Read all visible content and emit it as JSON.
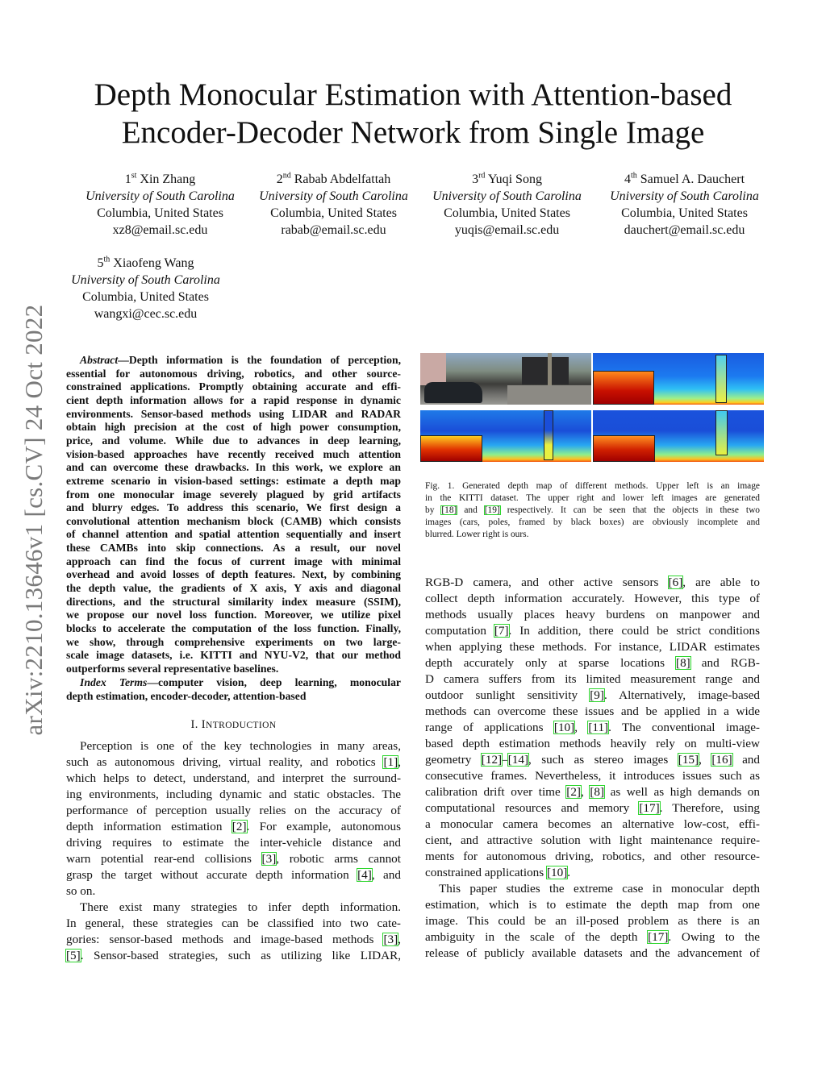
{
  "sidebar_id": "arXiv:2210.13646v1  [cs.CV]  24 Oct 2022",
  "title": [
    "Depth Monocular Estimation with Attention-based",
    "Encoder-Decoder Network from Single Image"
  ],
  "authors": [
    {
      "ord": "1",
      "sup": "st",
      "name": "Xin Zhang",
      "aff": "University of South Carolina",
      "loc": "Columbia, United States",
      "email": "xz8@email.sc.edu"
    },
    {
      "ord": "2",
      "sup": "nd",
      "name": "Rabab Abdelfattah",
      "aff": "University of South Carolina",
      "loc": "Columbia, United States",
      "email": "rabab@email.sc.edu"
    },
    {
      "ord": "3",
      "sup": "rd",
      "name": "Yuqi Song",
      "aff": "University of South Carolina",
      "loc": "Columbia, United States",
      "email": "yuqis@email.sc.edu"
    },
    {
      "ord": "4",
      "sup": "th",
      "name": "Samuel A. Dauchert",
      "aff": "University of South Carolina",
      "loc": "Columbia, United States",
      "email": "dauchert@email.sc.edu"
    },
    {
      "ord": "5",
      "sup": "th",
      "name": "Xiaofeng Wang",
      "aff": "University of South Carolina",
      "loc": "Columbia, United States",
      "email": "wangxi@cec.sc.edu"
    }
  ],
  "abstract": {
    "label": "Abstract",
    "lines": [
      "—Depth information is the foundation of perception,",
      "essential for autonomous driving, robotics, and other source-",
      "constrained applications. Promptly obtaining accurate and effi-",
      "cient depth information allows for a rapid response in dynamic",
      "environments. Sensor-based methods using LIDAR and RADAR",
      "obtain high precision at the cost of high power consumption,",
      "price, and volume. While due to advances in deep learning,",
      "vision-based approaches have recently received much attention",
      "and can overcome these drawbacks. In this work, we explore an",
      "extreme scenario in vision-based settings: estimate a depth map",
      "from one monocular image severely plagued by grid artifacts",
      "and blurry edges. To address this scenario, We first design a",
      "convolutional attention mechanism block (CAMB) which consists",
      "of channel attention and spatial attention sequentially and insert",
      "these CAMBs into skip connections. As a result, our novel",
      "approach can find the focus of current image with minimal",
      "overhead and avoid losses of depth features. Next, by combining",
      "the depth value, the gradients of X axis, Y axis and diagonal",
      "directions, and the structural similarity index measure (SSIM),",
      "we propose our novel loss function. Moreover, we utilize pixel",
      "blocks to accelerate the computation of the loss function. Finally,",
      "we show, through comprehensive experiments on two large-",
      "scale image datasets, i.e. KITTI and NYU-V2, that our method",
      "outperforms several representative baselines."
    ],
    "index_label": "Index Terms",
    "index_lines": [
      "—computer vision, deep learning, monocular",
      "depth estimation, encoder-decoder, attention-based"
    ]
  },
  "section": {
    "num": "I.",
    "first": "I",
    "rest": "NTRODUCTION"
  },
  "left_body": [
    "Perception is one of the key technologies in many areas,",
    "such as autonomous driving, virtual reality, and robotics [1],",
    "which helps to detect, understand, and interpret the surround-",
    "ing environments, including dynamic and static obstacles. The",
    "performance of perception usually relies on the accuracy of",
    "depth information estimation [2]. For example, autonomous",
    "driving requires to estimate the inter-vehicle distance and",
    "warn potential rear-end collisions [3], robotic arms cannot",
    "grasp the target without accurate depth information [4], and",
    "so on.",
    "There exist many strategies to infer depth information.",
    "In general, these strategies can be classified into two cate-",
    "gories: sensor-based methods and image-based methods [3],",
    "[5]. Sensor-based strategies, such as utilizing like LIDAR,"
  ],
  "right_body": [
    "RGB-D camera, and other active sensors [6], are able to",
    "collect depth information accurately. However, this type of",
    "methods usually places heavy burdens on manpower and",
    "computation [7]. In addition, there could be strict conditions",
    "when applying these methods. For instance, LIDAR estimates",
    "depth accurately only at sparse locations [8] and RGB-",
    "D camera suffers from its limited measurement range and",
    "outdoor sunlight sensitivity [9]. Alternatively, image-based",
    "methods can overcome these issues and be applied in a wide",
    "range of applications [10], [11]. The conventional image-",
    "based depth estimation methods heavily rely on multi-view",
    "geometry [12]–[14], such as stereo images [15], [16] and",
    "consecutive frames. Nevertheless, it introduces issues such as",
    "calibration drift over time [2], [8] as well as high demands on",
    "computational resources and memory [17]. Therefore, using",
    "a monocular camera becomes an alternative low-cost, effi-",
    "cient, and attractive solution with light maintenance require-",
    "ments for autonomous driving, robotics, and other resource-",
    "constrained applications [10].",
    "This paper studies the extreme case in monocular depth",
    "estimation, which is to estimate the depth map from one",
    "image. This could be an ill-posed problem as there is an",
    "ambiguity in the scale of the depth [17]. Owing to the",
    "release of publicly available datasets and the advancement of"
  ],
  "figure": {
    "caption": [
      "Fig. 1.  Generated depth map of different methods. Upper left is an image",
      "in the KITTI dataset. The upper right and lower left images are generated",
      "by [18] and [19] respectively. It can be seen that the objects in these two",
      "images (cars, poles, framed by black boxes) are obviously incomplete and",
      "blurred. Lower right is ours."
    ],
    "panels": [
      "kitti-photo",
      "depth-map-ref-18",
      "depth-map-ref-19",
      "depth-map-ours"
    ]
  },
  "colors": {
    "citation_box": "#2fd62f",
    "sidebar_text": "#7a7a7a"
  }
}
